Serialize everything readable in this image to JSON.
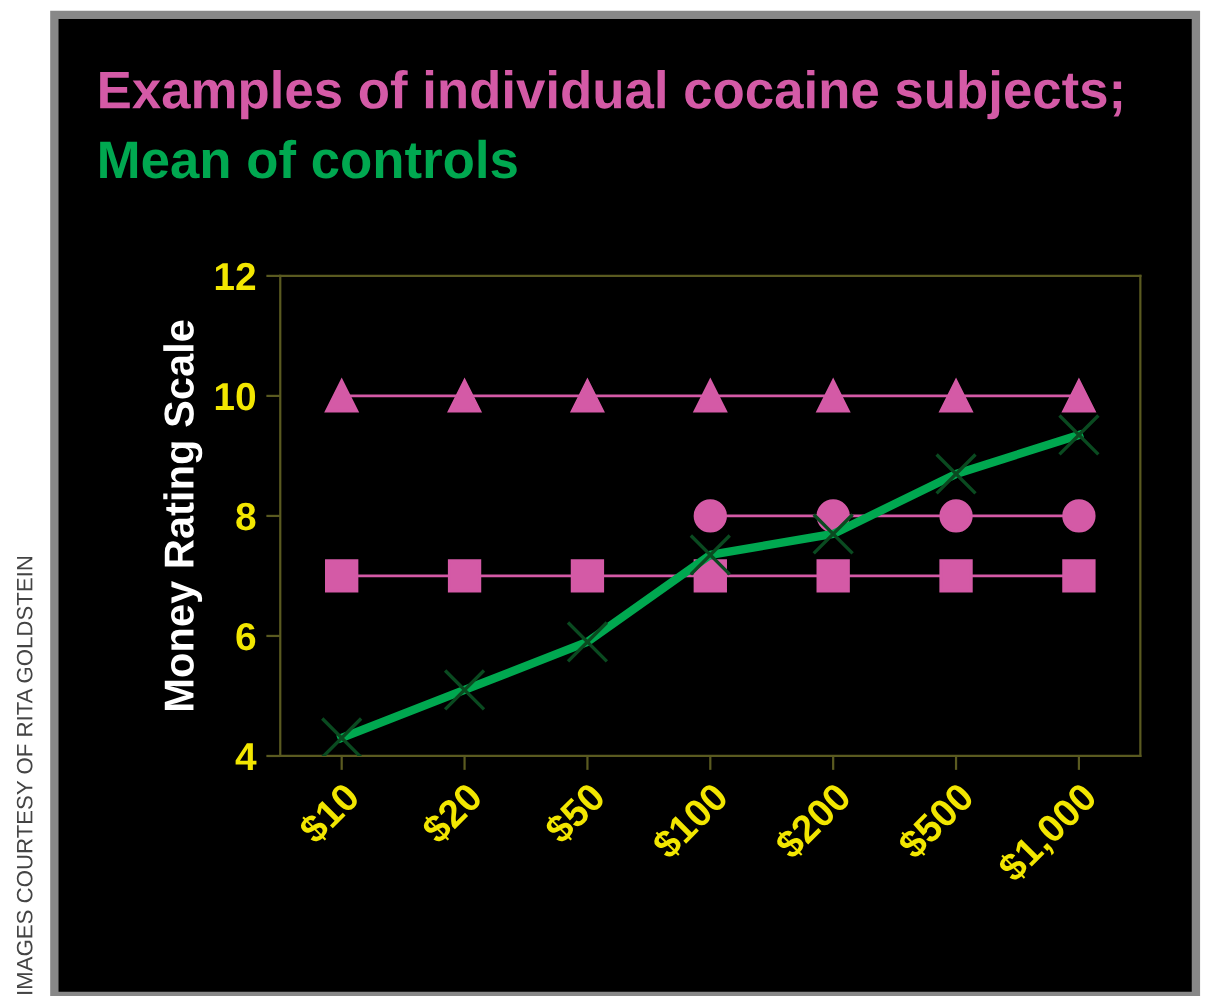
{
  "chart_data": {
    "type": "line",
    "title": "Examples of individual cocaine subjects;",
    "subtitle": "Mean of controls",
    "ylabel": "Money Rating Scale",
    "categories": [
      "$10",
      "$20",
      "$50",
      "$100",
      "$200",
      "$500",
      "$1,000"
    ],
    "series": [
      {
        "color": "#d45aa6",
        "marker": "triangle",
        "values": [
          10,
          10,
          10,
          10,
          10,
          10,
          10
        ]
      },
      {
        "color": "#d45aa6",
        "marker": "circle",
        "values": [
          null,
          null,
          null,
          8,
          8,
          8,
          8
        ]
      },
      {
        "color": "#d45aa6",
        "marker": "square",
        "values": [
          7,
          7,
          7,
          7,
          7,
          7,
          7
        ]
      },
      {
        "color": "#00a850",
        "marker": "cross",
        "values": [
          4.3,
          5.1,
          5.9,
          7.35,
          7.7,
          8.7,
          9.35
        ]
      }
    ],
    "ylim": [
      4,
      12
    ],
    "yticks": [
      4,
      6,
      8,
      10,
      12
    ],
    "grid": false,
    "legend": false,
    "annotations": [
      "IMAGES COURTESY OF RITA GOLDSTEIN"
    ]
  }
}
